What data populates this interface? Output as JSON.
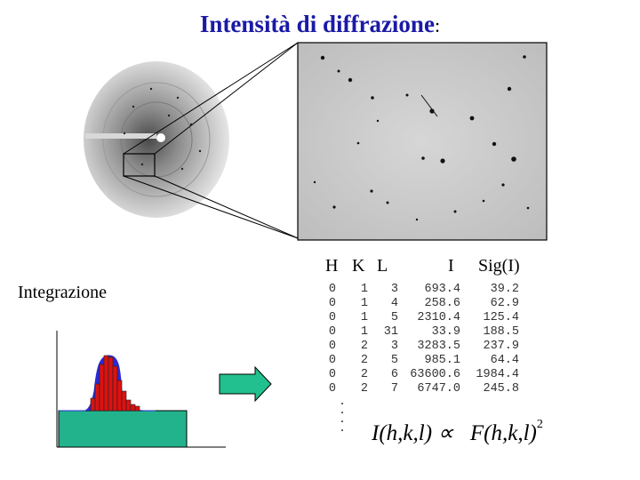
{
  "title": {
    "main": "Intensità di diffrazione",
    "colon": ":"
  },
  "integration_label": "Integrazione",
  "table_header": {
    "h": "H",
    "k": "K",
    "l": "L",
    "i": "I",
    "sig": "Sig(I)"
  },
  "table_rows": [
    {
      "h": "0",
      "k": "1",
      "l": "3",
      "i": "693.4",
      "sig": "39.2"
    },
    {
      "h": "0",
      "k": "1",
      "l": "4",
      "i": "258.6",
      "sig": "62.9"
    },
    {
      "h": "0",
      "k": "1",
      "l": "5",
      "i": "2310.4",
      "sig": "125.4"
    },
    {
      "h": "0",
      "k": "1",
      "l": "31",
      "i": "33.9",
      "sig": "188.5"
    },
    {
      "h": "0",
      "k": "2",
      "l": "3",
      "i": "3283.5",
      "sig": "237.9"
    },
    {
      "h": "0",
      "k": "2",
      "l": "5",
      "i": "985.1",
      "sig": "64.4"
    },
    {
      "h": "0",
      "k": "2",
      "l": "6",
      "i": "63600.6",
      "sig": "1984.4"
    },
    {
      "h": "0",
      "k": "2",
      "l": "7",
      "i": "6747.0",
      "sig": "245.8"
    }
  ],
  "formula": {
    "lhs": "I(h,k,l) ∝",
    "rhs": "F(h,k,l)",
    "exponent": "2"
  },
  "colors": {
    "title": "#1a1aa6",
    "bars": "#dd1111",
    "profile": "#2b2bd0",
    "background_box": "#22b38c",
    "arrow": "#22c08e"
  }
}
